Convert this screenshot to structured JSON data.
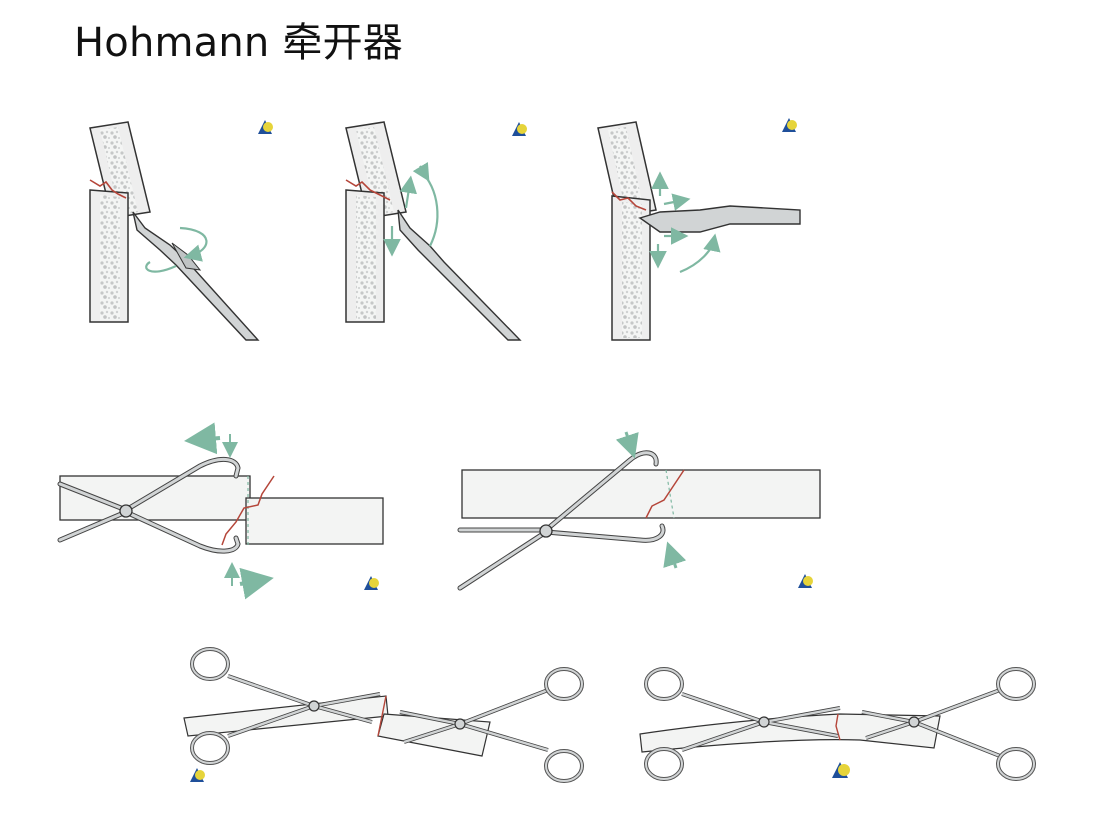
{
  "slide": {
    "title": "Hohmann 牵开器"
  },
  "figures": [
    {
      "name": "step-1-insert-and-rotate"
    },
    {
      "name": "step-2-lever-fragment"
    },
    {
      "name": "step-3-align-fracture"
    },
    {
      "name": "reduction-forceps-offset"
    },
    {
      "name": "reduction-forceps-aligned"
    },
    {
      "name": "pointed-forceps-pair-offset"
    },
    {
      "name": "pointed-forceps-pair-aligned"
    }
  ],
  "colors": {
    "bone_fill": "#f1f2f1",
    "bone_outline": "#333333",
    "cancellous": "#c9cbcb",
    "fracture_line": "#b5463a",
    "arrow": "#7fb8a2",
    "instrument": "#cfd2d3",
    "logo_blue": "#1f4f9a",
    "logo_yellow": "#e6d43a"
  }
}
